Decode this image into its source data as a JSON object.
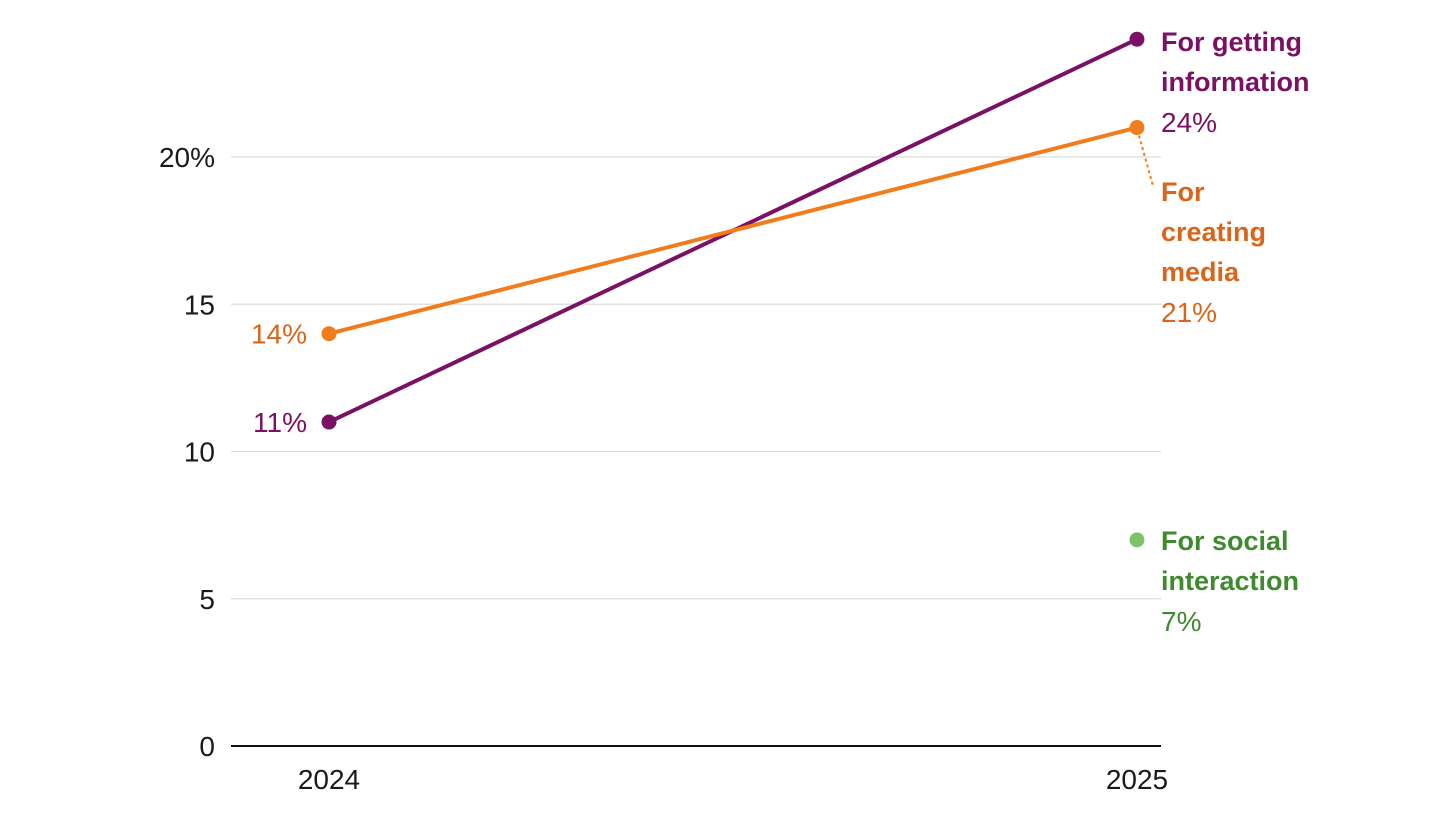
{
  "chart_data": {
    "type": "line",
    "title": "",
    "xlabel": "",
    "ylabel": "",
    "categories": [
      "2024",
      "2025"
    ],
    "ylim": [
      0,
      25
    ],
    "y_ticks": [
      {
        "value": 0,
        "label": "0"
      },
      {
        "value": 5,
        "label": "5"
      },
      {
        "value": 10,
        "label": "10"
      },
      {
        "value": 15,
        "label": "15"
      },
      {
        "value": 20,
        "label": "20%"
      }
    ],
    "grid": true,
    "legend": "direct labels at right end of each series",
    "series": [
      {
        "name": "For getting information",
        "name_lines": [
          "For getting",
          "information"
        ],
        "values": [
          11,
          24
        ],
        "value_labels": [
          "11%",
          "24%"
        ],
        "color": "#7b1164",
        "label_color": "#7b1164"
      },
      {
        "name": "For creating media",
        "name_lines": [
          "For",
          "creating",
          "media"
        ],
        "values": [
          14,
          21
        ],
        "value_labels": [
          "14%",
          "21%"
        ],
        "color": "#f07c1b",
        "label_color": "#d9651a"
      },
      {
        "name": "For social interaction",
        "name_lines": [
          "For social",
          "interaction"
        ],
        "values": [
          null,
          7
        ],
        "value_labels": [
          "",
          "7%"
        ],
        "color": "#7dc36a",
        "label_color": "#3f8a2f"
      }
    ]
  }
}
